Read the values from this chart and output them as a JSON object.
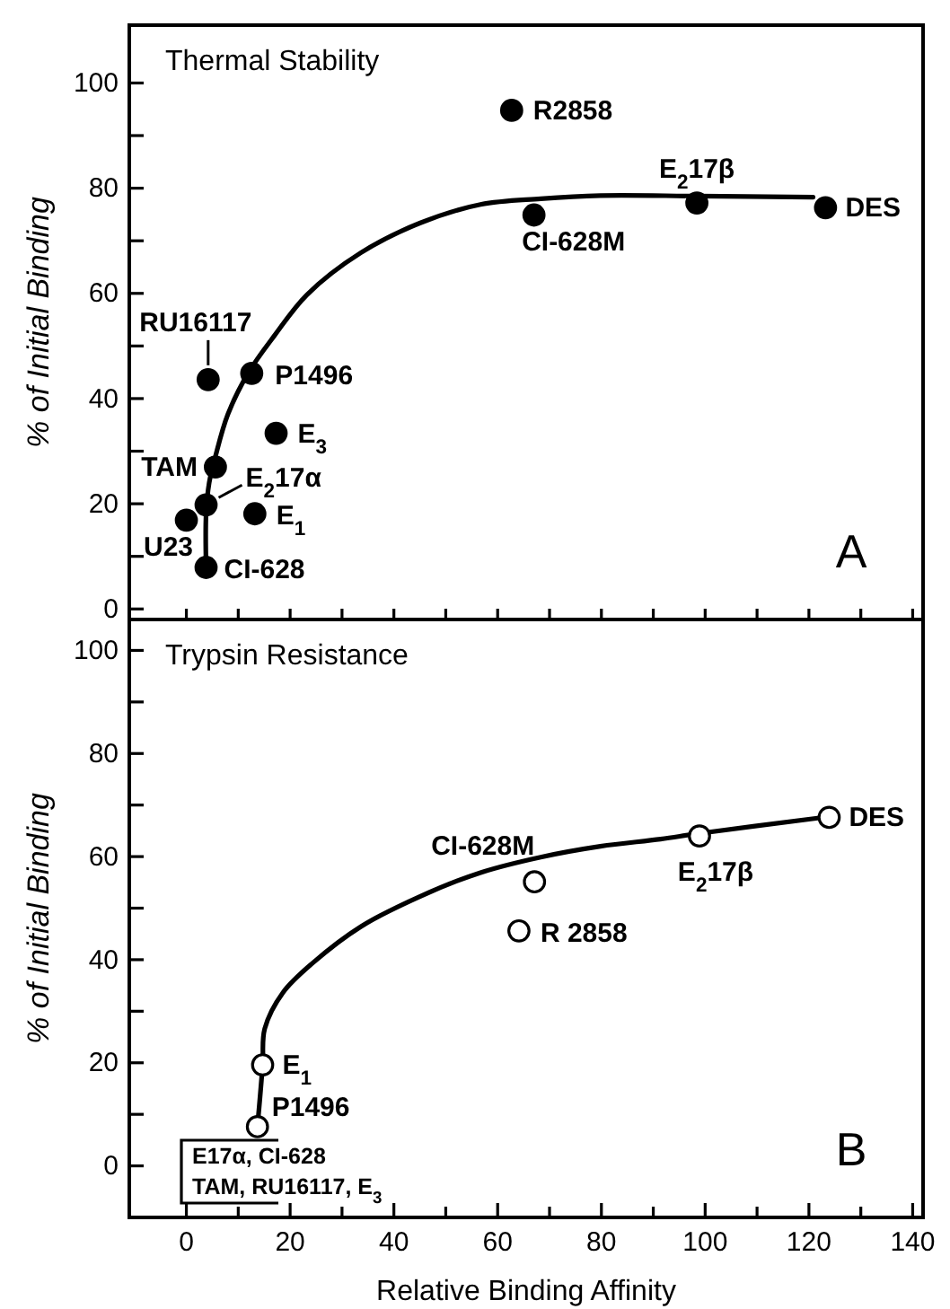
{
  "chart_data": [
    {
      "type": "scatter",
      "title": "Thermal Stability",
      "ylabel": "% of Initial Binding",
      "xlim": [
        -11,
        142
      ],
      "ylim": [
        -2,
        111
      ],
      "tick_labels": "y",
      "xticks": [
        {
          "value": 0,
          "label": null
        },
        {
          "value": 10,
          "label": null
        },
        {
          "value": 20,
          "label": null
        },
        {
          "value": 30,
          "label": null
        },
        {
          "value": 40,
          "label": null
        },
        {
          "value": 50,
          "label": null
        },
        {
          "value": 60,
          "label": null
        },
        {
          "value": 70,
          "label": null
        },
        {
          "value": 80,
          "label": null
        },
        {
          "value": 90,
          "label": null
        },
        {
          "value": 100,
          "label": null
        },
        {
          "value": 110,
          "label": null
        },
        {
          "value": 120,
          "label": null
        },
        {
          "value": 130,
          "label": null
        },
        {
          "value": 140,
          "label": null
        }
      ],
      "yticks": [
        0,
        {
          "value": 10,
          "label": null
        },
        20,
        {
          "value": 30,
          "label": null
        },
        40,
        {
          "value": 50,
          "label": null
        },
        60,
        {
          "value": 70,
          "label": null
        },
        80,
        {
          "value": 90,
          "label": null
        },
        100
      ],
      "series": [
        {
          "color": "#000000",
          "marker": "circle",
          "x": [
            62.7,
            98.4,
            123.2,
            67,
            4.2,
            12.6,
            17.3,
            5.6,
            3.8,
            13.2,
            0,
            3.8
          ],
          "values": [
            94.8,
            77.2,
            76.3,
            74.9,
            43.6,
            44.8,
            33.4,
            27,
            19.8,
            18.1,
            16.9,
            7.9
          ]
        },
        {
          "type": "line",
          "color": "#000000",
          "marker": "none",
          "line_style": "solid",
          "x": [
            3.8,
            3.8,
            4.4,
            5.6,
            8,
            12,
            17,
            23.2,
            33.6,
            45.1,
            56.7,
            68.3,
            79.8,
            98.4,
            120.8
          ],
          "values": [
            8,
            18,
            24,
            29,
            37,
            45,
            52,
            59.7,
            67.7,
            73.4,
            76.9,
            78,
            78.6,
            78.5,
            78.3
          ]
        }
      ],
      "annotations": [
        {
          "text": "R2858",
          "x": 62.7,
          "y": 94.8
        },
        {
          "text": "E$_{2}$17β",
          "x": 98.4,
          "y": 77.2
        },
        {
          "text": "DES",
          "x": 123.2,
          "y": 76.3
        },
        {
          "text": "CI-628M",
          "x": 67,
          "y": 74.9
        },
        {
          "text": "RU16117",
          "x": 4.2,
          "y": 43.6
        },
        {
          "text": "P1496",
          "x": 12.6,
          "y": 44.8
        },
        {
          "text": "E$_{3}$",
          "x": 17.3,
          "y": 33.4
        },
        {
          "text": "TAM",
          "x": 5.6,
          "y": 27
        },
        {
          "text": "E$_{2}$17α",
          "x": 3.8,
          "y": 19.8
        },
        {
          "text": "E$_{1}$",
          "x": 13.2,
          "y": 18.1
        },
        {
          "text": "U23",
          "x": 0,
          "y": 16.9
        },
        {
          "text": "CI-628",
          "x": 3.8,
          "y": 7.9
        },
        "A"
      ]
    },
    {
      "type": "scatter",
      "title": "Trypsin Resistance",
      "ylabel": "% of Initial Binding",
      "xlabel": "Relative Binding Affinity",
      "xlim": [
        -11,
        142
      ],
      "ylim": [
        -10,
        106
      ],
      "xticks": [
        0,
        {
          "value": 10,
          "label": null
        },
        20,
        {
          "value": 30,
          "label": null
        },
        40,
        {
          "value": 50,
          "label": null
        },
        60,
        {
          "value": 70,
          "label": null
        },
        80,
        {
          "value": 90,
          "label": null
        },
        100,
        {
          "value": 110,
          "label": null
        },
        120,
        {
          "value": 130,
          "label": null
        },
        140
      ],
      "yticks": [
        0,
        {
          "value": 10,
          "label": null
        },
        20,
        {
          "value": 30,
          "label": null
        },
        40,
        {
          "value": 50,
          "label": null
        },
        60,
        {
          "value": 70,
          "label": null
        },
        80,
        {
          "value": 90,
          "label": null
        },
        100
      ],
      "series": [
        {
          "color": "#ffffff",
          "marker": "circle",
          "x": [
            123.9,
            98.9,
            67.1,
            64.1,
            14.7,
            13.7
          ],
          "values": [
            67.6,
            64,
            55.1,
            45.6,
            19.6,
            7.6
          ]
        },
        {
          "type": "line",
          "color": "#000000",
          "marker": "none",
          "line_style": "solid",
          "x": [
            13.7,
            14.7,
            15.1,
            18.6,
            24.4,
            33.6,
            45.1,
            56.7,
            68.3,
            79.8,
            91.4,
            98.9,
            122
          ],
          "values": [
            7.6,
            19.6,
            26.6,
            33.6,
            39.4,
            46.4,
            52.3,
            56.9,
            59.9,
            62,
            63.4,
            64.5,
            67.5
          ]
        }
      ],
      "annotations": [
        {
          "text": "DES",
          "x": 123.9,
          "y": 67.6
        },
        {
          "text": "E$_{2}$17β",
          "x": 98.9,
          "y": 64
        },
        {
          "text": "CI-628M",
          "x": 67.1,
          "y": 55.1
        },
        {
          "text": "R 2858",
          "x": 64.1,
          "y": 45.6
        },
        {
          "text": "E$_{1}$",
          "x": 14.7,
          "y": 19.6
        },
        {
          "text": "P1496",
          "x": 13.7,
          "y": 7.6
        },
        "E17α, CI-628\nTAM, RU16117, E$_{3}$",
        "B"
      ]
    }
  ]
}
